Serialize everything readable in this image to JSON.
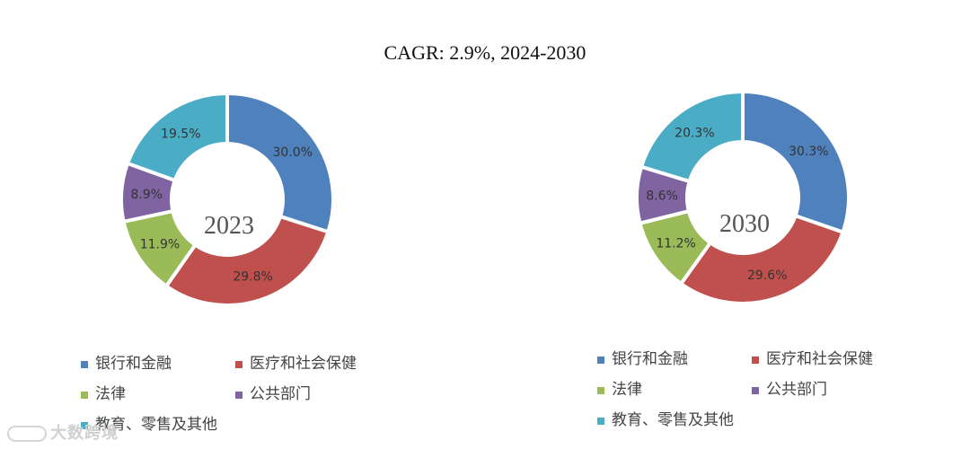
{
  "title": "CAGR:   2.9%, 2024-2030",
  "colors": {
    "banking": "#4F81BD",
    "healthcare": "#C0504D",
    "legal": "#9BBB59",
    "public": "#8064A2",
    "education": "#4BACC6"
  },
  "chart_data": [
    {
      "type": "pie",
      "center_label": "2023",
      "categories": [
        "银行和金融",
        "医疗和社会保健",
        "法律",
        "公共部门",
        "教育、零售及其他"
      ],
      "values": [
        30.0,
        29.8,
        11.9,
        8.9,
        19.5
      ],
      "data_labels": [
        "30.0%",
        "29.8%",
        "11.9%",
        "8.9%",
        "19.5%"
      ]
    },
    {
      "type": "pie",
      "center_label": "2030",
      "categories": [
        "银行和金融",
        "医疗和社会保健",
        "法律",
        "公共部门",
        "教育、零售及其他"
      ],
      "values": [
        30.3,
        29.6,
        11.2,
        8.6,
        20.3
      ],
      "data_labels": [
        "30.3%",
        "29.6%",
        "11.2%",
        "8.6%",
        "20.3%"
      ]
    }
  ],
  "legend": {
    "items": [
      "银行和金融",
      "医疗和社会保健",
      "法律",
      "公共部门",
      "教育、零售及其他"
    ]
  },
  "watermark": "大数跨境"
}
